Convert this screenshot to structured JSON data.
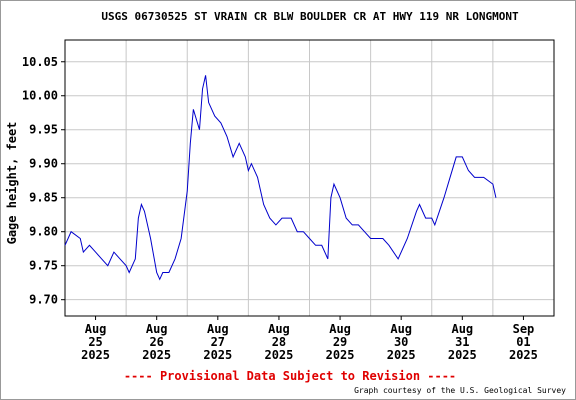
{
  "chart_data": {
    "type": "line",
    "title": "USGS 06730525 ST VRAIN CR BLW BOULDER CR AT HWY 119 NR LONGMONT",
    "y_label": "Gage height, feet",
    "footer": "---- Provisional Data Subject to Revision ----",
    "credit": "Graph courtesy of the U.S. Geological Survey",
    "grid": true,
    "xlim": [
      0,
      8
    ],
    "xgrid": [
      1,
      2,
      3,
      4,
      5,
      6,
      7
    ],
    "xticks": [
      {
        "value": 0.5,
        "label": [
          "Aug",
          "25",
          "2025"
        ]
      },
      {
        "value": 1.5,
        "label": [
          "Aug",
          "26",
          "2025"
        ]
      },
      {
        "value": 2.5,
        "label": [
          "Aug",
          "27",
          "2025"
        ]
      },
      {
        "value": 3.5,
        "label": [
          "Aug",
          "28",
          "2025"
        ]
      },
      {
        "value": 4.5,
        "label": [
          "Aug",
          "29",
          "2025"
        ]
      },
      {
        "value": 5.5,
        "label": [
          "Aug",
          "30",
          "2025"
        ]
      },
      {
        "value": 6.5,
        "label": [
          "Aug",
          "31",
          "2025"
        ]
      },
      {
        "value": 7.5,
        "label": [
          "Sep",
          "01",
          "2025"
        ]
      }
    ],
    "ylim": [
      9.676,
      10.082
    ],
    "yticks": [
      {
        "value": 9.7,
        "label": "9.70"
      },
      9.75,
      {
        "value": 9.8,
        "label": "9.80"
      },
      9.85,
      {
        "value": 9.9,
        "label": "9.90"
      },
      9.95,
      {
        "value": 10,
        "label": "10.00"
      },
      10.05
    ],
    "series": [
      {
        "color": "#0000cc",
        "x": [
          0,
          0.05,
          0.1,
          0.25,
          0.3,
          0.4,
          0.5,
          0.6,
          0.7,
          0.8,
          0.9,
          1.0,
          1.05,
          1.15,
          1.2,
          1.25,
          1.3,
          1.4,
          1.5,
          1.55,
          1.6,
          1.7,
          1.8,
          1.9,
          2.0,
          2.05,
          2.1,
          2.2,
          2.25,
          2.3,
          2.35,
          2.45,
          2.55,
          2.65,
          2.75,
          2.85,
          2.95,
          3.0,
          3.05,
          3.15,
          3.25,
          3.35,
          3.45,
          3.55,
          3.7,
          3.8,
          3.9,
          4.0,
          4.1,
          4.2,
          4.3,
          4.35,
          4.4,
          4.5,
          4.6,
          4.7,
          4.8,
          4.9,
          5.0,
          5.2,
          5.3,
          5.45,
          5.6,
          5.75,
          5.8,
          5.9,
          6.0,
          6.05,
          6.2,
          6.3,
          6.4,
          6.5,
          6.6,
          6.7,
          6.85,
          7.0,
          7.05
        ],
        "values": [
          9.78,
          9.79,
          9.8,
          9.79,
          9.77,
          9.78,
          9.77,
          9.76,
          9.75,
          9.77,
          9.76,
          9.75,
          9.74,
          9.76,
          9.82,
          9.84,
          9.83,
          9.79,
          9.74,
          9.73,
          9.74,
          9.74,
          9.76,
          9.79,
          9.86,
          9.93,
          9.98,
          9.95,
          10.01,
          10.03,
          9.99,
          9.97,
          9.96,
          9.94,
          9.91,
          9.93,
          9.91,
          9.89,
          9.9,
          9.88,
          9.84,
          9.82,
          9.81,
          9.82,
          9.82,
          9.8,
          9.8,
          9.79,
          9.78,
          9.78,
          9.76,
          9.85,
          9.87,
          9.85,
          9.82,
          9.81,
          9.81,
          9.8,
          9.79,
          9.79,
          9.78,
          9.76,
          9.79,
          9.83,
          9.84,
          9.82,
          9.82,
          9.81,
          9.85,
          9.88,
          9.91,
          9.91,
          9.89,
          9.88,
          9.88,
          9.87,
          9.85
        ]
      }
    ]
  }
}
